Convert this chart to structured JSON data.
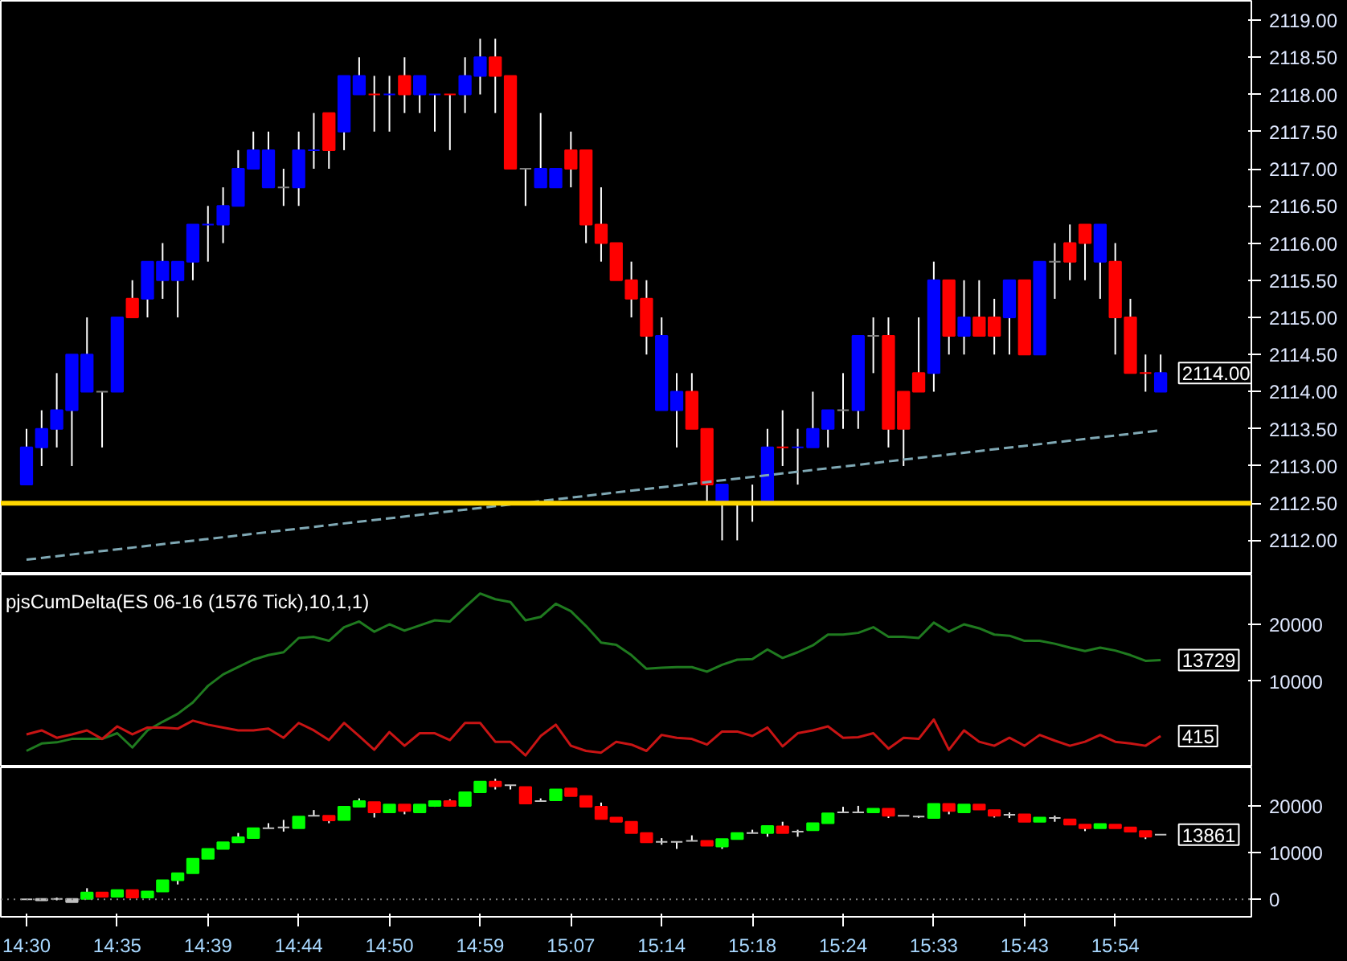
{
  "chart_data": [
    {
      "type": "candlestick",
      "categories": [
        null,
        null,
        null,
        null,
        null,
        null,
        null,
        null,
        null,
        null,
        null,
        null,
        null,
        null,
        null,
        null,
        null,
        null,
        null,
        null,
        null,
        null,
        null,
        null,
        null,
        null,
        null,
        null,
        null,
        null,
        null,
        null,
        null,
        null,
        null,
        null,
        null,
        null,
        null,
        null,
        null,
        null,
        null,
        null,
        null,
        null,
        null,
        null,
        null,
        null,
        null,
        null,
        null,
        null,
        null,
        null,
        null,
        null,
        null,
        null,
        null,
        null,
        null,
        null,
        null,
        null,
        null,
        null,
        null,
        null,
        null,
        null,
        null,
        null,
        null,
        null
      ],
      "ohlc": [
        [
          2112.75,
          2113.5,
          2112.75,
          2113.25
        ],
        [
          2113.25,
          2113.75,
          2113.0,
          2113.5
        ],
        [
          2113.5,
          2114.25,
          2113.25,
          2113.75
        ],
        [
          2113.75,
          2114.5,
          2113.0,
          2114.5
        ],
        [
          2114.0,
          2115.0,
          2114.0,
          2114.5
        ],
        [
          2114.0,
          2114.0,
          2113.25,
          2114.0
        ],
        [
          2114.0,
          2115.0,
          2114.0,
          2115.0
        ],
        [
          2115.25,
          2115.5,
          2115.0,
          2115.0
        ],
        [
          2115.25,
          2115.75,
          2115.0,
          2115.75
        ],
        [
          2115.5,
          2116.0,
          2115.25,
          2115.75
        ],
        [
          2115.5,
          2115.75,
          2115.0,
          2115.75
        ],
        [
          2115.75,
          2116.25,
          2115.5,
          2116.25
        ],
        [
          2116.25,
          2116.5,
          2115.75,
          2116.25
        ],
        [
          2116.25,
          2116.75,
          2116.0,
          2116.5
        ],
        [
          2116.5,
          2117.25,
          2116.5,
          2117.0
        ],
        [
          2117.0,
          2117.5,
          2117.0,
          2117.25
        ],
        [
          2116.75,
          2117.5,
          2116.75,
          2117.25
        ],
        [
          2116.75,
          2117.0,
          2116.5,
          2116.75
        ],
        [
          2116.75,
          2117.5,
          2116.5,
          2117.25
        ],
        [
          2117.25,
          2117.75,
          2117.0,
          2117.25
        ],
        [
          2117.75,
          2117.75,
          2117.0,
          2117.25
        ],
        [
          2117.5,
          2118.25,
          2117.25,
          2118.25
        ],
        [
          2118.0,
          2118.5,
          2118.0,
          2118.25
        ],
        [
          2118.0,
          2118.25,
          2117.5,
          2118.0
        ],
        [
          2118.0,
          2118.25,
          2117.5,
          2118.0
        ],
        [
          2118.25,
          2118.5,
          2117.75,
          2118.0
        ],
        [
          2118.0,
          2118.25,
          2117.75,
          2118.25
        ],
        [
          2118.0,
          2118.0,
          2117.5,
          2118.0
        ],
        [
          2118.0,
          2118.0,
          2117.25,
          2118.0
        ],
        [
          2118.0,
          2118.5,
          2117.75,
          2118.25
        ],
        [
          2118.25,
          2118.75,
          2118.0,
          2118.5
        ],
        [
          2118.5,
          2118.75,
          2117.75,
          2118.25
        ],
        [
          2118.25,
          2118.25,
          2117.0,
          2117.0
        ],
        [
          2117.0,
          2117.0,
          2116.5,
          2117.0
        ],
        [
          2116.75,
          2117.75,
          2116.75,
          2117.0
        ],
        [
          2116.75,
          2117.0,
          2116.75,
          2117.0
        ],
        [
          2117.25,
          2117.5,
          2116.75,
          2117.0
        ],
        [
          2117.25,
          2117.25,
          2116.0,
          2116.25
        ],
        [
          2116.25,
          2116.75,
          2115.75,
          2116.0
        ],
        [
          2116.0,
          2116.0,
          2115.5,
          2115.5
        ],
        [
          2115.5,
          2115.75,
          2115.0,
          2115.25
        ],
        [
          2115.25,
          2115.5,
          2114.5,
          2114.75
        ],
        [
          2113.75,
          2115.0,
          2113.75,
          2114.75
        ],
        [
          2113.75,
          2114.25,
          2113.25,
          2114.0
        ],
        [
          2114.0,
          2114.25,
          2113.5,
          2113.5
        ],
        [
          2113.5,
          2113.5,
          2112.5,
          2112.75
        ],
        [
          2112.5,
          2112.75,
          2112.0,
          2112.75
        ],
        [
          2112.5,
          2112.5,
          2112.0,
          2112.5
        ],
        [
          2112.5,
          2112.75,
          2112.25,
          2112.5
        ],
        [
          2112.5,
          2113.5,
          2112.5,
          2113.25
        ],
        [
          2113.25,
          2113.75,
          2113.0,
          2113.25
        ],
        [
          2113.25,
          2113.5,
          2112.75,
          2113.25
        ],
        [
          2113.25,
          2114.0,
          2113.25,
          2113.5
        ],
        [
          2113.5,
          2113.75,
          2113.25,
          2113.75
        ],
        [
          2113.75,
          2114.25,
          2113.5,
          2113.75
        ],
        [
          2113.75,
          2114.75,
          2113.5,
          2114.75
        ],
        [
          2114.75,
          2115.0,
          2114.25,
          2114.75
        ],
        [
          2114.75,
          2115.0,
          2113.25,
          2113.5
        ],
        [
          2114.0,
          2114.0,
          2113.0,
          2113.5
        ],
        [
          2114.25,
          2115.0,
          2114.0,
          2114.0
        ],
        [
          2114.25,
          2115.75,
          2114.0,
          2115.5
        ],
        [
          2115.5,
          2115.5,
          2114.5,
          2114.75
        ],
        [
          2114.75,
          2115.5,
          2114.5,
          2115.0
        ],
        [
          2115.0,
          2115.5,
          2114.75,
          2114.75
        ],
        [
          2115.0,
          2115.25,
          2114.5,
          2114.75
        ],
        [
          2115.0,
          2115.5,
          2114.5,
          2115.5
        ],
        [
          2115.5,
          2115.5,
          2114.5,
          2114.5
        ],
        [
          2114.5,
          2115.75,
          2114.5,
          2115.75
        ],
        [
          2115.75,
          2116.0,
          2115.25,
          2115.75
        ],
        [
          2116.0,
          2116.25,
          2115.5,
          2115.75
        ],
        [
          2116.25,
          2116.25,
          2115.5,
          2116.0
        ],
        [
          2115.75,
          2116.25,
          2115.25,
          2116.25
        ],
        [
          2115.75,
          2116.0,
          2114.5,
          2115.0
        ],
        [
          2115.0,
          2115.25,
          2114.25,
          2114.25
        ],
        [
          2114.25,
          2114.5,
          2114.0,
          2114.25
        ],
        [
          2114.0,
          2114.5,
          2114.0,
          2114.25
        ]
      ],
      "colors": [
        "#0000ff",
        "#0000ff",
        "#0000ff",
        "#0000ff",
        "#0000ff",
        "#808080",
        "#0000ff",
        "#ff0000",
        "#0000ff",
        "#0000ff",
        "#0000ff",
        "#0000ff",
        "#0000ff",
        "#0000ff",
        "#0000ff",
        "#0000ff",
        "#0000ff",
        "#808080",
        "#0000ff",
        "#0000ff",
        "#ff0000",
        "#0000ff",
        "#0000ff",
        "#ff0000",
        "#0000ff",
        "#ff0000",
        "#0000ff",
        "#0000ff",
        "#ff0000",
        "#0000ff",
        "#0000ff",
        "#ff0000",
        "#ff0000",
        "#808080",
        "#0000ff",
        "#0000ff",
        "#ff0000",
        "#ff0000",
        "#ff0000",
        "#ff0000",
        "#ff0000",
        "#ff0000",
        "#0000ff",
        "#0000ff",
        "#ff0000",
        "#ff0000",
        "#0000ff",
        "#808080",
        "#808080",
        "#0000ff",
        "#ff0000",
        "#0000ff",
        "#0000ff",
        "#0000ff",
        "#808080",
        "#0000ff",
        "#808080",
        "#ff0000",
        "#ff0000",
        "#ff0000",
        "#0000ff",
        "#ff0000",
        "#0000ff",
        "#ff0000",
        "#ff0000",
        "#0000ff",
        "#ff0000",
        "#0000ff",
        "#808080",
        "#ff0000",
        "#ff0000",
        "#0000ff",
        "#ff0000",
        "#ff0000",
        "#ff0000",
        "#0000ff"
      ],
      "series": [
        {
          "type": "line",
          "color": "#7fa8b4",
          "line_style": "dashed",
          "values": [
            2111.74,
            null,
            null,
            null,
            null,
            null,
            null,
            null,
            null,
            null,
            null,
            null,
            null,
            null,
            null,
            null,
            null,
            null,
            null,
            null,
            null,
            null,
            null,
            null,
            null,
            null,
            null,
            null,
            null,
            null,
            null,
            null,
            null,
            null,
            null,
            null,
            null,
            null,
            null,
            null,
            null,
            null,
            null,
            null,
            null,
            null,
            null,
            null,
            null,
            null,
            null,
            null,
            null,
            null,
            null,
            null,
            null,
            null,
            null,
            null,
            null,
            null,
            null,
            null,
            null,
            null,
            null,
            null,
            null,
            null,
            null,
            null,
            null,
            null,
            null,
            2113.48
          ]
        }
      ],
      "ref_lines": [
        {
          "axis": "y",
          "value": 2112.5,
          "color": "#ffd700"
        }
      ],
      "annotations": [
        "2114.00"
      ],
      "ylim": [
        2111.54,
        2119.26
      ],
      "yticks": [
        {
          "value": 2112,
          "label": "2112.00"
        },
        {
          "value": 2112.5,
          "label": "2112.50"
        },
        {
          "value": 2113,
          "label": "2113.00"
        },
        {
          "value": 2113.5,
          "label": "2113.50"
        },
        {
          "value": 2114,
          "label": "2114.00"
        },
        {
          "value": 2114.5,
          "label": "2114.50"
        },
        {
          "value": 2115,
          "label": "2115.00"
        },
        {
          "value": 2115.5,
          "label": "2115.50"
        },
        {
          "value": 2116,
          "label": "2116.00"
        },
        {
          "value": 2116.5,
          "label": "2116.50"
        },
        {
          "value": 2117,
          "label": "2117.00"
        },
        {
          "value": 2117.5,
          "label": "2117.50"
        },
        {
          "value": 2118,
          "label": "2118.00"
        },
        {
          "value": 2118.5,
          "label": "2118.50"
        },
        {
          "value": 2119,
          "label": "2119.00"
        }
      ],
      "tick_labels": "y",
      "grid": false
    },
    {
      "type": "line",
      "title": "pjsCumDelta(ES 06-16 (1576 Tick),10,1,1)",
      "categories": [
        null,
        null,
        null,
        null,
        null,
        null,
        null,
        null,
        null,
        null,
        null,
        null,
        null,
        null,
        null,
        null,
        null,
        null,
        null,
        null,
        null,
        null,
        null,
        null,
        null,
        null,
        null,
        null,
        null,
        null,
        null,
        null,
        null,
        null,
        null,
        null,
        null,
        null,
        null,
        null,
        null,
        null,
        null,
        null,
        null,
        null,
        null,
        null,
        null,
        null,
        null,
        null,
        null,
        null,
        null,
        null,
        null,
        null,
        null,
        null,
        null,
        null,
        null,
        null,
        null,
        null,
        null,
        null,
        null,
        null,
        null,
        null,
        null,
        null,
        null,
        null
      ],
      "series": [
        {
          "color": "#1f7a1f",
          "values": [
            -2200,
            -900,
            -700,
            -100,
            -100,
            -100,
            900,
            -1600,
            1400,
            2900,
            4300,
            6300,
            9200,
            11200,
            12500,
            13800,
            14600,
            15100,
            17600,
            17800,
            17100,
            19500,
            20500,
            18700,
            20000,
            18900,
            19800,
            20700,
            20500,
            23000,
            25400,
            24400,
            23900,
            20700,
            21300,
            23600,
            22300,
            19700,
            16800,
            16400,
            14600,
            12200,
            12400,
            12500,
            12500,
            11700,
            12900,
            13800,
            13900,
            15600,
            14100,
            15100,
            16300,
            18200,
            18200,
            18500,
            19500,
            17800,
            17800,
            17600,
            20300,
            18700,
            20000,
            19300,
            18200,
            18000,
            17100,
            17100,
            16600,
            15900,
            15300,
            15900,
            15400,
            14600,
            13600,
            13729
          ]
        },
        {
          "color": "#c81414",
          "values": [
            700,
            1400,
            100,
            700,
            1400,
            -100,
            2100,
            700,
            1900,
            1900,
            1700,
            3100,
            2400,
            1900,
            1400,
            1400,
            1700,
            100,
            2700,
            1400,
            -300,
            2700,
            400,
            -2000,
            1100,
            -1300,
            900,
            900,
            -300,
            2700,
            2700,
            -600,
            -600,
            -3000,
            400,
            2400,
            -1300,
            -2200,
            -2500,
            -600,
            -1100,
            -2200,
            600,
            100,
            -100,
            -1100,
            1200,
            1200,
            400,
            1900,
            -1400,
            900,
            1400,
            2100,
            100,
            200,
            900,
            -1800,
            100,
            -100,
            3300,
            -2000,
            1400,
            -600,
            -1300,
            100,
            -1300,
            600,
            -400,
            -1300,
            -600,
            600,
            -600,
            -900,
            -1300,
            415
          ]
        }
      ],
      "annotations": [
        "13729",
        "415"
      ],
      "ylim": [
        -5088,
        28735
      ],
      "yticks": [
        10000,
        20000
      ],
      "tick_labels": "y",
      "grid": false
    },
    {
      "type": "candlestick",
      "categories": [
        "14:30",
        null,
        null,
        null,
        null,
        null,
        "14:35",
        null,
        null,
        null,
        null,
        null,
        "14:39",
        null,
        null,
        null,
        null,
        null,
        "14:44",
        null,
        null,
        null,
        null,
        null,
        "14:50",
        null,
        null,
        null,
        null,
        null,
        "14:59",
        null,
        null,
        null,
        null,
        null,
        "15:07",
        null,
        null,
        null,
        null,
        null,
        "15:14",
        null,
        null,
        null,
        null,
        null,
        "15:18",
        null,
        null,
        null,
        null,
        null,
        "15:24",
        null,
        null,
        null,
        null,
        null,
        "15:33",
        null,
        null,
        null,
        null,
        null,
        "15:43",
        null,
        null,
        null,
        null,
        null,
        "15:54",
        null,
        null,
        null
      ],
      "ohlc": [
        [
          0,
          100,
          -100,
          0
        ],
        [
          -200,
          100,
          -200,
          100
        ],
        [
          100,
          400,
          -200,
          100
        ],
        [
          -600,
          100,
          -600,
          100
        ],
        [
          100,
          2400,
          100,
          1500
        ],
        [
          1500,
          1500,
          600,
          600
        ],
        [
          600,
          2000,
          600,
          2000
        ],
        [
          2000,
          2000,
          400,
          400
        ],
        [
          400,
          1700,
          400,
          1700
        ],
        [
          1700,
          4100,
          1700,
          4100
        ],
        [
          4100,
          5600,
          3200,
          5600
        ],
        [
          5600,
          8700,
          5600,
          8700
        ],
        [
          8700,
          10800,
          8700,
          10800
        ],
        [
          10800,
          12200,
          10800,
          12200
        ],
        [
          12200,
          14200,
          12200,
          13300
        ],
        [
          13100,
          15200,
          13100,
          15200
        ],
        [
          15200,
          16300,
          15200,
          15200
        ],
        [
          15400,
          17000,
          14500,
          15400
        ],
        [
          15200,
          17700,
          15200,
          17700
        ],
        [
          17900,
          19100,
          17900,
          17900
        ],
        [
          17900,
          17900,
          16300,
          16900
        ],
        [
          17000,
          19800,
          17000,
          19800
        ],
        [
          19800,
          21600,
          19800,
          21000
        ],
        [
          20800,
          20800,
          17500,
          18600
        ],
        [
          18600,
          20300,
          18600,
          20300
        ],
        [
          20300,
          20300,
          18200,
          18900
        ],
        [
          18600,
          20300,
          18600,
          20300
        ],
        [
          20000,
          21000,
          19800,
          21000
        ],
        [
          21000,
          21400,
          20000,
          20000
        ],
        [
          20000,
          22900,
          20000,
          22900
        ],
        [
          22900,
          25200,
          22900,
          25200
        ],
        [
          25200,
          25800,
          23500,
          24200
        ],
        [
          24400,
          24400,
          23500,
          24400
        ],
        [
          24000,
          24000,
          20500,
          20500
        ],
        [
          21000,
          21600,
          21000,
          21000
        ],
        [
          21200,
          23500,
          21200,
          23500
        ],
        [
          23700,
          23700,
          22100,
          22100
        ],
        [
          22100,
          22100,
          19800,
          19800
        ],
        [
          19800,
          20700,
          17200,
          17200
        ],
        [
          17500,
          17500,
          16600,
          16600
        ],
        [
          16600,
          16600,
          14200,
          14200
        ],
        [
          14200,
          14200,
          12200,
          12200
        ],
        [
          12300,
          13100,
          11700,
          12300
        ],
        [
          12300,
          12300,
          10800,
          12300
        ],
        [
          12500,
          13700,
          12500,
          12500
        ],
        [
          12500,
          12500,
          11500,
          11500
        ],
        [
          11300,
          12900,
          10800,
          12900
        ],
        [
          12900,
          14200,
          12900,
          14200
        ],
        [
          14200,
          14900,
          14200,
          14200
        ],
        [
          14200,
          15700,
          13400,
          15700
        ],
        [
          15600,
          16600,
          14200,
          14200
        ],
        [
          14500,
          14900,
          13400,
          14500
        ],
        [
          14800,
          16300,
          14800,
          16300
        ],
        [
          16300,
          18400,
          16300,
          18400
        ],
        [
          18600,
          19800,
          18600,
          18600
        ],
        [
          18600,
          20000,
          18600,
          18600
        ],
        [
          18600,
          19400,
          18600,
          19400
        ],
        [
          19400,
          19400,
          17400,
          17900
        ],
        [
          17900,
          17900,
          17900,
          17900
        ],
        [
          17700,
          17900,
          17400,
          17700
        ],
        [
          17400,
          20400,
          17400,
          20400
        ],
        [
          20400,
          20400,
          18200,
          18900
        ],
        [
          18600,
          20300,
          18600,
          20300
        ],
        [
          20300,
          20300,
          19200,
          19200
        ],
        [
          19100,
          19100,
          17500,
          17900
        ],
        [
          18100,
          18600,
          17400,
          18100
        ],
        [
          18200,
          18200,
          16600,
          16600
        ],
        [
          16600,
          17500,
          16600,
          17500
        ],
        [
          17400,
          17900,
          16600,
          17400
        ],
        [
          17100,
          17100,
          16000,
          16000
        ],
        [
          16000,
          16000,
          14600,
          15200
        ],
        [
          15200,
          16100,
          15200,
          16100
        ],
        [
          16000,
          16000,
          15200,
          15200
        ],
        [
          15400,
          15400,
          14500,
          14500
        ],
        [
          14600,
          14600,
          12900,
          13400
        ],
        [
          13861,
          13861,
          13861,
          13861
        ]
      ],
      "colors": [
        "#c0c0c0",
        "#c0c0c0",
        "#c0c0c0",
        "#c0c0c0",
        "#00ff00",
        "#ff0000",
        "#00ff00",
        "#ff0000",
        "#00ff00",
        "#00ff00",
        "#00ff00",
        "#00ff00",
        "#00ff00",
        "#00ff00",
        "#00ff00",
        "#00ff00",
        "#c0c0c0",
        "#c0c0c0",
        "#00ff00",
        "#c0c0c0",
        "#ff0000",
        "#00ff00",
        "#00ff00",
        "#ff0000",
        "#00ff00",
        "#ff0000",
        "#00ff00",
        "#00ff00",
        "#ff0000",
        "#00ff00",
        "#00ff00",
        "#ff0000",
        "#c0c0c0",
        "#ff0000",
        "#c0c0c0",
        "#00ff00",
        "#ff0000",
        "#ff0000",
        "#ff0000",
        "#ff0000",
        "#ff0000",
        "#ff0000",
        "#c0c0c0",
        "#c0c0c0",
        "#c0c0c0",
        "#ff0000",
        "#00ff00",
        "#00ff00",
        "#c0c0c0",
        "#00ff00",
        "#ff0000",
        "#c0c0c0",
        "#00ff00",
        "#00ff00",
        "#c0c0c0",
        "#c0c0c0",
        "#00ff00",
        "#ff0000",
        "#c0c0c0",
        "#c0c0c0",
        "#00ff00",
        "#ff0000",
        "#00ff00",
        "#ff0000",
        "#ff0000",
        "#c0c0c0",
        "#ff0000",
        "#00ff00",
        "#c0c0c0",
        "#ff0000",
        "#ff0000",
        "#00ff00",
        "#ff0000",
        "#ff0000",
        "#ff0000",
        "#c0c0c0"
      ],
      "ref_lines": [
        {
          "axis": "y",
          "value": 0,
          "color": "#808080",
          "line_style": "dotted"
        }
      ],
      "annotations": [
        "13861"
      ],
      "ylim": [
        -3715,
        28229
      ],
      "yticks": [
        0,
        10000,
        20000
      ],
      "grid": false
    }
  ]
}
